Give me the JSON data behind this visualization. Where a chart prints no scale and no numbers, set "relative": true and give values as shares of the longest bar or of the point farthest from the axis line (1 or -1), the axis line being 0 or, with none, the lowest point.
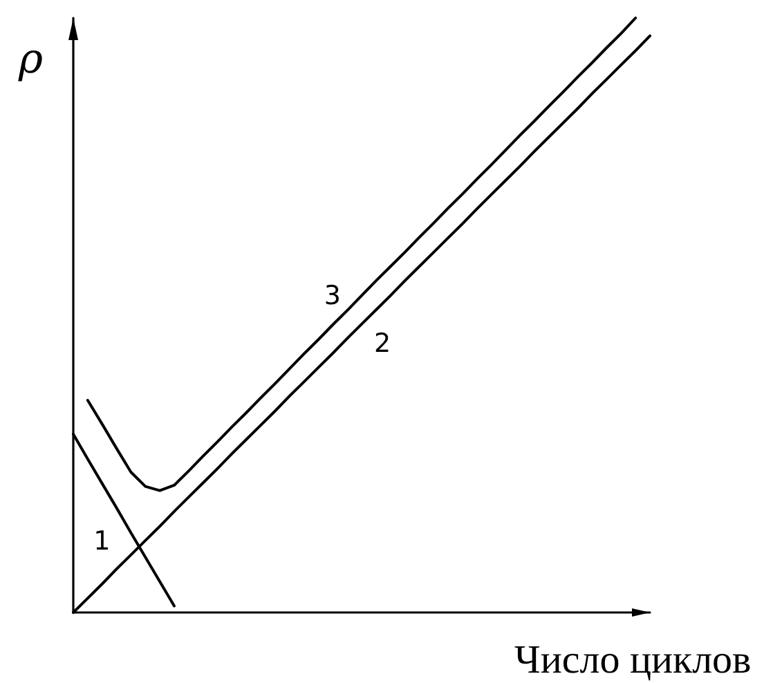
{
  "chart_data": {
    "type": "line",
    "relative": true,
    "xlabel": "Число циклов",
    "ylabel": "ρ",
    "marker": "none",
    "line_style": "solid",
    "grid": false,
    "legend": false,
    "categories": [
      null,
      null,
      null,
      null,
      null,
      null,
      null,
      null,
      null,
      null,
      null,
      null,
      null,
      null,
      null,
      null,
      null,
      null,
      null,
      null,
      null,
      null,
      null,
      null,
      null,
      null,
      null,
      null,
      null,
      null,
      null,
      null,
      null,
      null,
      null,
      null,
      null,
      null,
      null,
      null,
      null
    ],
    "series": [
      {
        "name": "1",
        "color": "#000000",
        "values": [
          0.3,
          0.258,
          0.217,
          0.176,
          0.134,
          0.093,
          0.052,
          0.011,
          null,
          null,
          null,
          null,
          null,
          null,
          null,
          null,
          null,
          null,
          null,
          null,
          null,
          null,
          null,
          null,
          null,
          null,
          null,
          null,
          null,
          null,
          null,
          null,
          null,
          null,
          null,
          null,
          null,
          null,
          null,
          null,
          null
        ]
      },
      {
        "name": "2",
        "color": "#000000",
        "values": [
          0,
          0.024,
          0.048,
          0.073,
          0.097,
          0.121,
          0.145,
          0.17,
          0.194,
          0.218,
          0.242,
          0.267,
          0.291,
          0.315,
          0.339,
          0.364,
          0.388,
          0.412,
          0.436,
          0.461,
          0.485,
          0.509,
          0.533,
          0.558,
          0.582,
          0.606,
          0.63,
          0.654,
          0.679,
          0.703,
          0.727,
          0.751,
          0.776,
          0.8,
          0.824,
          0.848,
          0.873,
          0.897,
          0.921,
          0.945,
          0.97
        ]
      },
      {
        "name": "3",
        "color": "#000000",
        "values": [
          null,
          0.357,
          0.317,
          0.276,
          0.236,
          0.212,
          0.205,
          0.214,
          0.238,
          0.263,
          0.287,
          0.312,
          0.336,
          0.361,
          0.385,
          0.41,
          0.435,
          0.459,
          0.484,
          0.508,
          0.533,
          0.558,
          0.582,
          0.606,
          0.631,
          0.655,
          0.68,
          0.704,
          0.729,
          0.753,
          0.778,
          0.803,
          0.827,
          0.852,
          0.876,
          0.901,
          0.925,
          0.95,
          0.974,
          1.0,
          null
        ]
      }
    ]
  }
}
